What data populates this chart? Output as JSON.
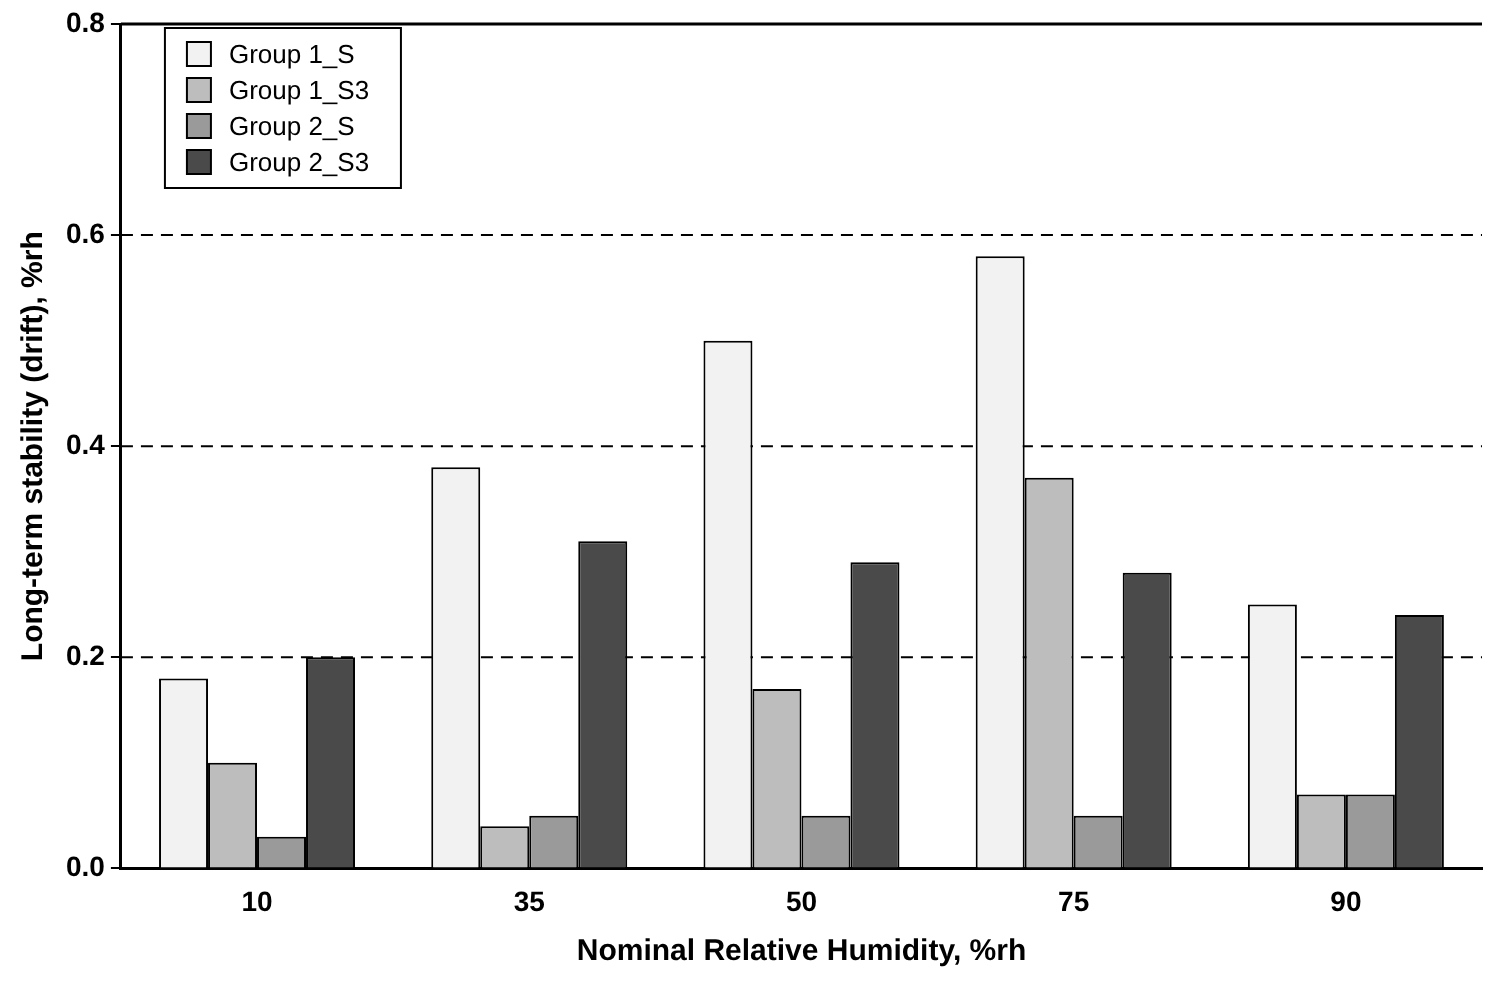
{
  "chart_data": {
    "type": "bar",
    "xlabel": "Nominal Relative Humidity, %rh",
    "ylabel": "Long-term stability (drift), %rh",
    "categories": [
      "10",
      "35",
      "50",
      "75",
      "90"
    ],
    "series": [
      {
        "name": "Group 1_S",
        "color": "#f2f2f2",
        "values": [
          0.18,
          0.38,
          0.5,
          0.58,
          0.25
        ]
      },
      {
        "name": "Group 1_S3",
        "color": "#bdbdbd",
        "values": [
          0.1,
          0.04,
          0.17,
          0.37,
          0.07
        ]
      },
      {
        "name": "Group 2_S",
        "color": "#9a9a9a",
        "values": [
          0.03,
          0.05,
          0.05,
          0.05,
          0.07
        ]
      },
      {
        "name": "Group 2_S3",
        "color": "#4a4a4a",
        "values": [
          0.2,
          0.31,
          0.29,
          0.28,
          0.24
        ]
      }
    ],
    "ylim": [
      0,
      0.8
    ],
    "yticks": [
      {
        "value": 0,
        "label": "0.0"
      },
      {
        "value": 0.2,
        "label": "0.2"
      },
      {
        "value": 0.4,
        "label": "0.4"
      },
      {
        "value": 0.6,
        "label": "0.6"
      },
      {
        "value": 0.8,
        "label": "0.8"
      }
    ],
    "grid": "y",
    "legend": "top left"
  }
}
